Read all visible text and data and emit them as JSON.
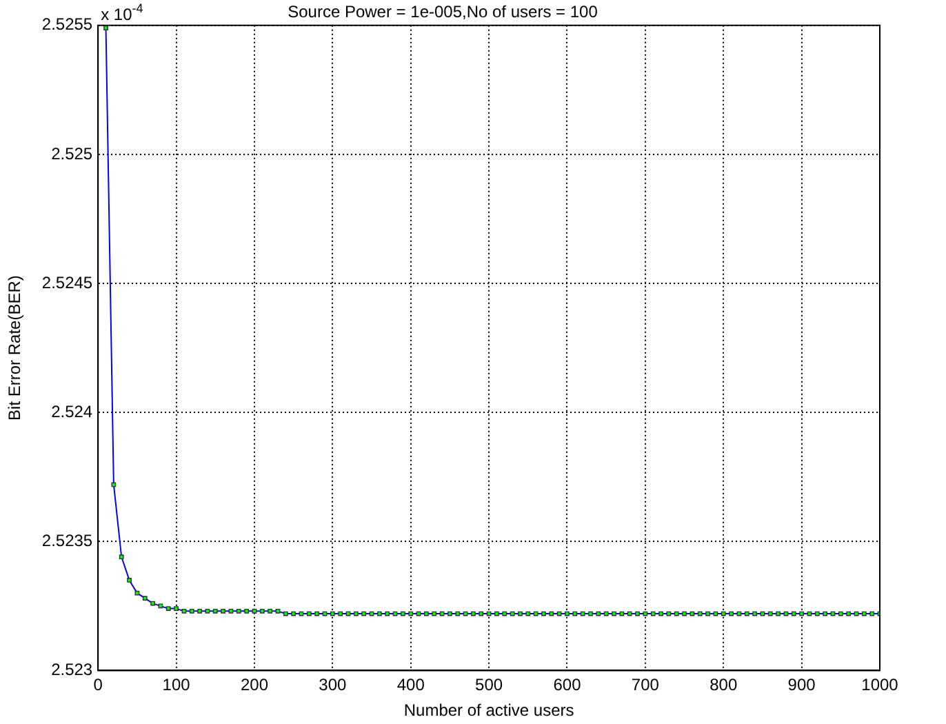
{
  "chart_data": {
    "type": "line",
    "title": "Source Power = 1e-005,No of users = 100",
    "xlabel": "Number of active users",
    "ylabel": "Bit Error Rate(BER)",
    "annotations": [
      "x 10$^{-4}$"
    ],
    "x": [
      10,
      20,
      30,
      40,
      50,
      60,
      70,
      80,
      90,
      100,
      110,
      120,
      130,
      140,
      150,
      160,
      170,
      180,
      190,
      200,
      210,
      220,
      230,
      240,
      250,
      260,
      270,
      280,
      290,
      300,
      310,
      320,
      330,
      340,
      350,
      360,
      370,
      380,
      390,
      400,
      410,
      420,
      430,
      440,
      450,
      460,
      470,
      480,
      490,
      500,
      510,
      520,
      530,
      540,
      550,
      560,
      570,
      580,
      590,
      600,
      610,
      620,
      630,
      640,
      650,
      660,
      670,
      680,
      690,
      700,
      710,
      720,
      730,
      740,
      750,
      760,
      770,
      780,
      790,
      800,
      810,
      820,
      830,
      840,
      850,
      860,
      870,
      880,
      890,
      900,
      910,
      920,
      930,
      940,
      950,
      960,
      970,
      980,
      990,
      1000
    ],
    "series": [
      {
        "color": "#0000ff",
        "values": [
          2.52549,
          2.52372,
          2.52344,
          2.52335,
          2.5233,
          2.52328,
          2.52326,
          2.52325,
          2.52324,
          2.52324,
          2.52323,
          2.52323,
          2.52323,
          2.52323,
          2.52323,
          2.52323,
          2.52323,
          2.52323,
          2.52323,
          2.52323,
          2.52323,
          2.52323,
          2.52323,
          2.52322,
          2.52322,
          2.52322,
          2.52322,
          2.52322,
          2.52322,
          2.52322,
          2.52322,
          2.52322,
          2.52322,
          2.52322,
          2.52322,
          2.52322,
          2.52322,
          2.52322,
          2.52322,
          2.52322,
          2.52322,
          2.52322,
          2.52322,
          2.52322,
          2.52322,
          2.52322,
          2.52322,
          2.52322,
          2.52322,
          2.52322,
          2.52322,
          2.52322,
          2.52322,
          2.52322,
          2.52322,
          2.52322,
          2.52322,
          2.52322,
          2.52322,
          2.52322,
          2.52322,
          2.52322,
          2.52322,
          2.52322,
          2.52322,
          2.52322,
          2.52322,
          2.52322,
          2.52322,
          2.52322,
          2.52322,
          2.52322,
          2.52322,
          2.52322,
          2.52322,
          2.52322,
          2.52322,
          2.52322,
          2.52322,
          2.52322,
          2.52322,
          2.52322,
          2.52322,
          2.52322,
          2.52322,
          2.52322,
          2.52322,
          2.52322,
          2.52322,
          2.52322,
          2.52322,
          2.52322,
          2.52322,
          2.52322,
          2.52322,
          2.52322,
          2.52322,
          2.52322,
          2.52322,
          2.52322
        ]
      }
    ],
    "xlim": [
      0,
      1000
    ],
    "xticks": [
      0,
      100,
      200,
      300,
      400,
      500,
      600,
      700,
      800,
      900,
      1000
    ],
    "ylim": [
      2.523,
      2.5255
    ],
    "yticks": [
      2.523,
      2.5235,
      2.524,
      2.5245,
      2.525,
      2.5255
    ],
    "grid": true,
    "legend": false,
    "marker": "square",
    "line_style": "solid"
  }
}
